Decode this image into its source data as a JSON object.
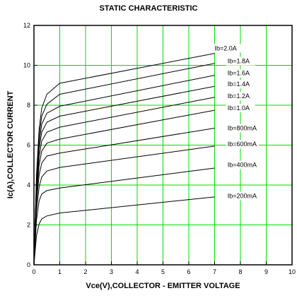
{
  "chart_data": {
    "type": "line",
    "title": "STATIC CHARACTERISTIC",
    "xlabel": "Vce(V),COLLECTOR - EMITTER VOLTAGE",
    "ylabel": "Ic(A),COLLECTOR CURRENT",
    "xlim": [
      0,
      10
    ],
    "ylim": [
      0,
      12
    ],
    "xticks": [
      0,
      1,
      2,
      3,
      4,
      5,
      6,
      7,
      8,
      9,
      10
    ],
    "yticks": [
      0,
      2,
      4,
      6,
      8,
      10,
      12
    ],
    "grid": true,
    "colors": {
      "grid": "#00dd00",
      "curve": "#000000",
      "axis": "#000000"
    },
    "series": [
      {
        "name": "Ib=200mA",
        "label_x": 7.5,
        "label_y": 3.35,
        "points": [
          [
            0,
            0
          ],
          [
            0.1,
            1.45
          ],
          [
            0.2,
            2.05
          ],
          [
            0.3,
            2.3
          ],
          [
            0.5,
            2.45
          ],
          [
            1.0,
            2.6
          ],
          [
            7.0,
            3.4
          ]
        ]
      },
      {
        "name": "Ib=400mA",
        "label_x": 7.5,
        "label_y": 4.9,
        "points": [
          [
            0,
            0
          ],
          [
            0.1,
            2.25
          ],
          [
            0.2,
            3.2
          ],
          [
            0.3,
            3.55
          ],
          [
            0.5,
            3.72
          ],
          [
            1.0,
            3.85
          ],
          [
            7.0,
            4.85
          ]
        ]
      },
      {
        "name": "Ib=600mA",
        "label_x": 7.5,
        "label_y": 5.95,
        "points": [
          [
            0,
            0
          ],
          [
            0.1,
            2.7
          ],
          [
            0.2,
            3.9
          ],
          [
            0.3,
            4.4
          ],
          [
            0.5,
            4.7
          ],
          [
            1.0,
            4.88
          ],
          [
            7.0,
            5.95
          ]
        ]
      },
      {
        "name": "Ib=800mA",
        "label_x": 7.5,
        "label_y": 6.75,
        "points": [
          [
            0,
            0
          ],
          [
            0.1,
            3.1
          ],
          [
            0.2,
            4.5
          ],
          [
            0.3,
            5.1
          ],
          [
            0.5,
            5.45
          ],
          [
            1.0,
            5.6
          ],
          [
            7.0,
            6.85
          ]
        ]
      },
      {
        "name": "Ib=1.0A",
        "label_x": 7.5,
        "label_y": 7.75,
        "points": [
          [
            0,
            0
          ],
          [
            0.1,
            3.4
          ],
          [
            0.2,
            5.0
          ],
          [
            0.3,
            5.7
          ],
          [
            0.5,
            6.1
          ],
          [
            1.0,
            6.3
          ],
          [
            7.0,
            7.75
          ]
        ]
      },
      {
        "name": "Ib=1.2A",
        "label_x": 7.5,
        "label_y": 8.35,
        "points": [
          [
            0,
            0
          ],
          [
            0.1,
            3.7
          ],
          [
            0.2,
            5.4
          ],
          [
            0.3,
            6.2
          ],
          [
            0.5,
            6.65
          ],
          [
            1.0,
            6.9
          ],
          [
            7.0,
            8.4
          ]
        ]
      },
      {
        "name": "Ib=1.4A",
        "label_x": 7.5,
        "label_y": 8.95,
        "points": [
          [
            0,
            0
          ],
          [
            0.1,
            3.9
          ],
          [
            0.2,
            5.8
          ],
          [
            0.3,
            6.65
          ],
          [
            0.5,
            7.15
          ],
          [
            1.0,
            7.45
          ],
          [
            7.0,
            8.95
          ]
        ]
      },
      {
        "name": "Ib=1.6A",
        "label_x": 7.5,
        "label_y": 9.5,
        "points": [
          [
            0,
            0
          ],
          [
            0.1,
            4.1
          ],
          [
            0.2,
            6.1
          ],
          [
            0.3,
            7.05
          ],
          [
            0.5,
            7.6
          ],
          [
            1.0,
            7.95
          ],
          [
            7.0,
            9.5
          ]
        ]
      },
      {
        "name": "Ib=1.8A",
        "label_x": 7.5,
        "label_y": 10.1,
        "points": [
          [
            0,
            0
          ],
          [
            0.1,
            4.3
          ],
          [
            0.2,
            6.45
          ],
          [
            0.3,
            7.45
          ],
          [
            0.5,
            8.05
          ],
          [
            1.0,
            8.55
          ],
          [
            7.0,
            10.1
          ]
        ]
      },
      {
        "name": "Ib=2.0A",
        "label_x": 7.0,
        "label_y": 10.75,
        "points": [
          [
            0,
            0
          ],
          [
            0.1,
            4.5
          ],
          [
            0.2,
            6.8
          ],
          [
            0.3,
            7.85
          ],
          [
            0.5,
            8.55
          ],
          [
            1.0,
            9.1
          ],
          [
            7.0,
            10.6
          ]
        ]
      }
    ]
  }
}
